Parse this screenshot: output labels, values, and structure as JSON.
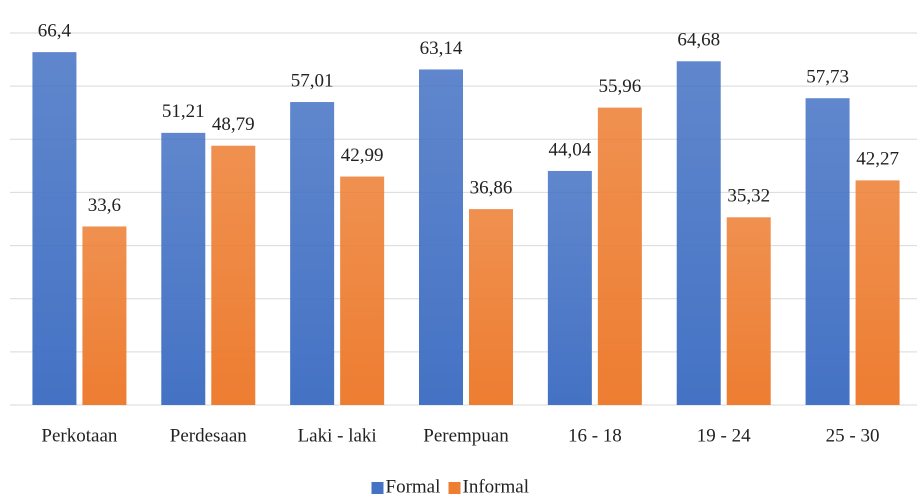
{
  "chart_data": {
    "type": "bar",
    "categories": [
      "Perkotaan",
      "Perdesaan",
      "Laki - laki",
      "Perempuan",
      "16 - 18",
      "19 - 24",
      "25 - 30"
    ],
    "series": [
      {
        "name": "Formal",
        "color": "#4472c4",
        "values": [
          66.4,
          51.21,
          57.01,
          63.14,
          44.04,
          64.68,
          57.73
        ],
        "value_labels": [
          "66,4",
          "51,21",
          "57,01",
          "63,14",
          "44,04",
          "64,68",
          "57,73"
        ]
      },
      {
        "name": "Informal",
        "color": "#ed7d31",
        "values": [
          33.6,
          48.79,
          42.99,
          36.86,
          55.96,
          35.32,
          42.27
        ],
        "value_labels": [
          "33,6",
          "48,79",
          "42,99",
          "36,86",
          "55,96",
          "35,32",
          "42,27"
        ]
      }
    ],
    "ylim": [
      0,
      70
    ],
    "yticks": [
      0,
      10,
      20,
      30,
      40,
      50,
      60,
      70
    ],
    "grid": true,
    "legend": "bottom"
  }
}
